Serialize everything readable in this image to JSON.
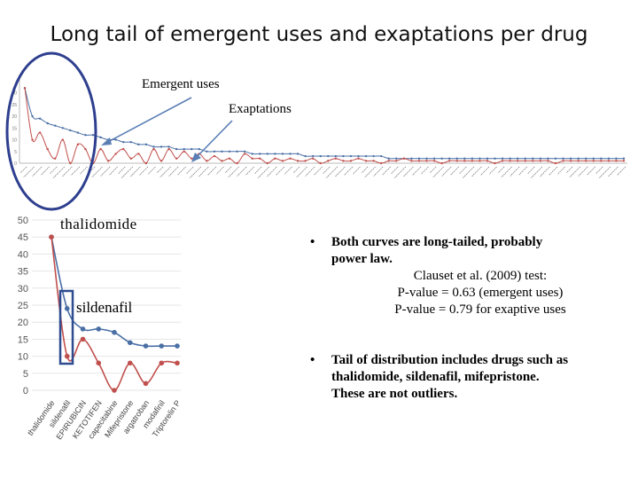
{
  "slide": {
    "title": "Long tail of emergent uses and exaptations per drug"
  },
  "annotations": {
    "emergent_label": "Emergent uses",
    "exaptations_label": "Exaptations",
    "thalidomide_label": "thalidomide",
    "sildenafil_label": "sildenafil"
  },
  "bullets": {
    "b1_line1": "Both curves are long-tailed, probably",
    "b1_line2": "power law.",
    "b1_line3": "Clauset et al. (2009) test:",
    "b1_line4": "P-value = 0.63 (emergent uses)",
    "b1_line5": "P-value = 0.79 for exaptive uses",
    "b2_line1": "Tail of distribution includes drugs such as",
    "b2_line2": "thalidomide, sildenafil, mifepristone.",
    "b2_line3": "These are not outliers.",
    "marker": "•"
  },
  "colors": {
    "emergent": "#4a6fa5",
    "exaptation": "#c0504d",
    "circle": "#2e3f8f",
    "arrow": "#5b7fb5",
    "box": "#2e4c8f"
  },
  "chart_data": [
    {
      "type": "line",
      "title": "",
      "xlabel": "",
      "ylabel": "",
      "ylim": [
        0,
        50
      ],
      "yticks": [
        0,
        5,
        10,
        15,
        20,
        25,
        30,
        35,
        40,
        45,
        50
      ],
      "categories": [
        "thalidomide",
        "sildenafil",
        "EPIRUBICIN",
        "KETOTIFEN",
        "capecitabine",
        "Mifepristone",
        "argatroban",
        "modafinil",
        "Triptorelin P"
      ],
      "series": [
        {
          "name": "Emergent uses",
          "values": [
            45,
            24,
            18,
            18,
            17,
            14,
            13,
            13,
            13
          ]
        },
        {
          "name": "Exaptations",
          "values": [
            45,
            10,
            15,
            8,
            0,
            8,
            2,
            8,
            8
          ]
        }
      ]
    },
    {
      "type": "line",
      "title": "",
      "xlabel": "",
      "ylabel": "",
      "ylim": [
        0,
        34
      ],
      "yticks": [
        0,
        5,
        10,
        15,
        20,
        25,
        30
      ],
      "series": [
        {
          "name": "Emergent uses",
          "values": [
            32,
            20,
            19,
            17,
            16,
            15,
            14,
            13,
            12,
            12,
            11,
            10,
            10,
            9,
            9,
            8,
            8,
            7,
            7,
            7,
            6,
            6,
            6,
            6,
            5,
            5,
            5,
            5,
            5,
            5,
            4,
            4,
            4,
            4,
            4,
            4,
            4,
            3,
            3,
            3,
            3,
            3,
            3,
            3,
            3,
            3,
            3,
            3,
            2,
            2,
            2,
            2,
            2,
            2,
            2,
            2,
            2,
            2,
            2,
            2,
            2,
            2,
            2,
            2,
            2,
            2,
            2,
            2,
            2,
            2,
            2,
            2,
            2,
            2,
            2,
            2,
            2,
            2,
            2,
            2
          ]
        },
        {
          "name": "Exaptations",
          "values": [
            32,
            10,
            13,
            6,
            2,
            10,
            0,
            8,
            6,
            0,
            6,
            1,
            4,
            6,
            2,
            4,
            0,
            6,
            1,
            6,
            2,
            5,
            2,
            4,
            1,
            3,
            1,
            2,
            0,
            4,
            2,
            2,
            0,
            2,
            1,
            2,
            1,
            1,
            2,
            0,
            1,
            2,
            1,
            1,
            2,
            1,
            1,
            0,
            1,
            1,
            2,
            1,
            1,
            1,
            1,
            0,
            1,
            1,
            1,
            1,
            1,
            1,
            0,
            1,
            1,
            1,
            1,
            1,
            1,
            1,
            0,
            1,
            1,
            1,
            1,
            1,
            1,
            1,
            1,
            1
          ]
        }
      ]
    }
  ]
}
